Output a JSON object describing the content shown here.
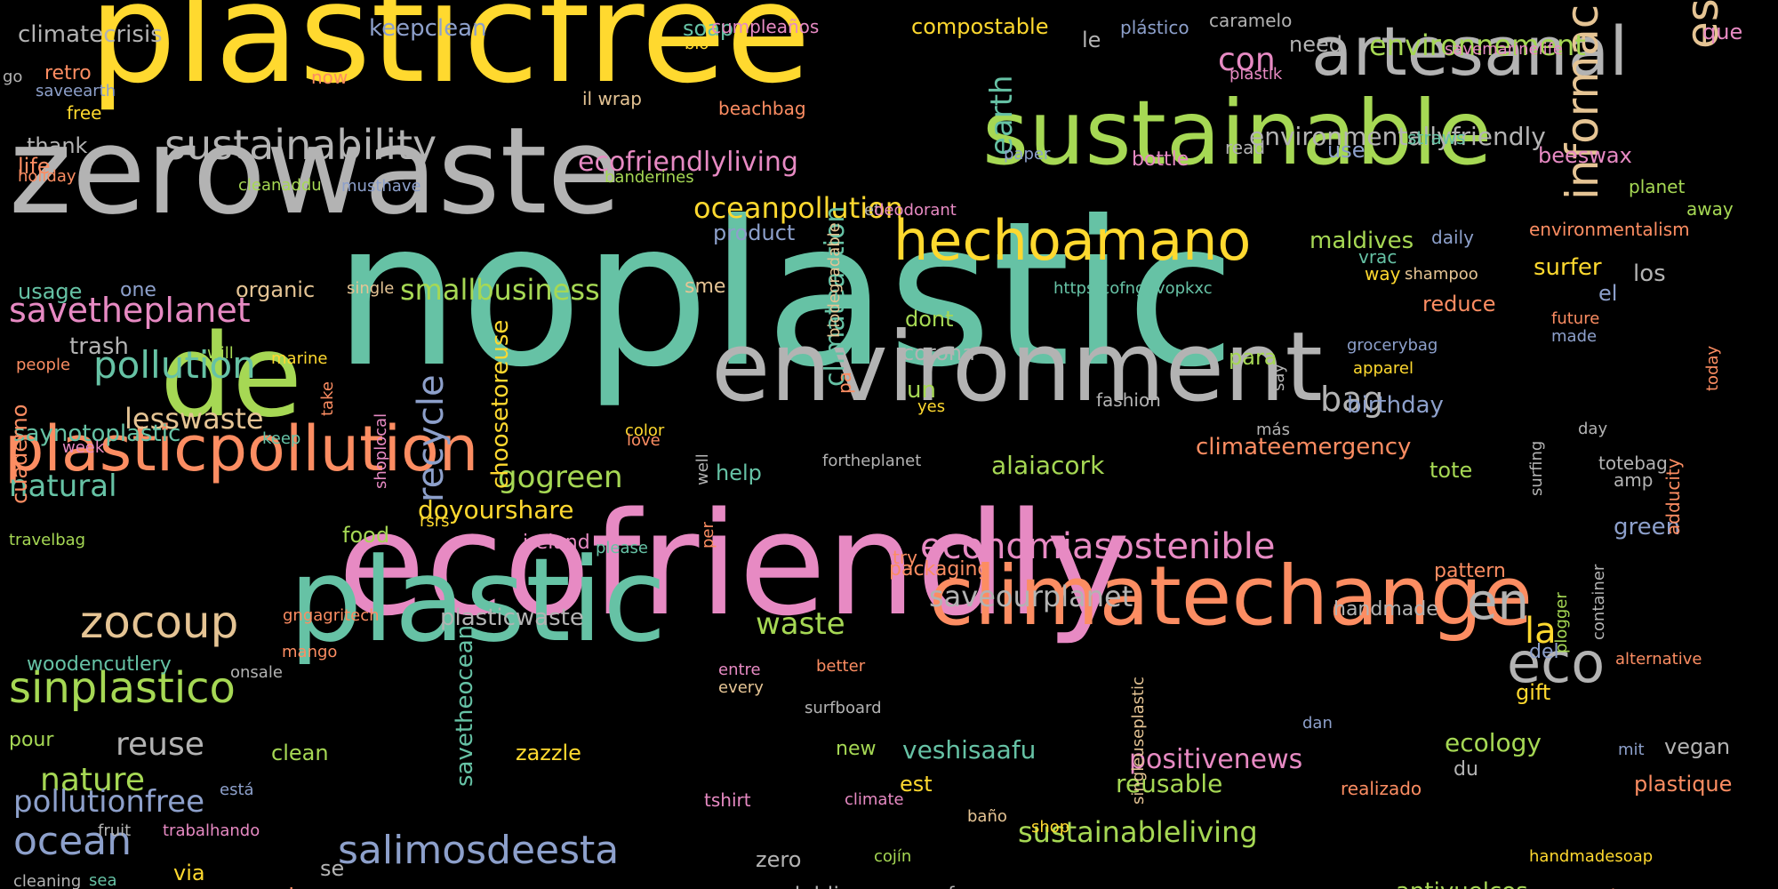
{
  "colors": {
    "background": "#000000",
    "teal": "#66c2a5",
    "orange": "#fc8d62",
    "blue": "#8da0cb",
    "pink": "#e78ac3",
    "green": "#a6d854",
    "yellow": "#ffd92f",
    "tan": "#e5c494",
    "gray": "#b3b3b3"
  },
  "words": [
    "noplastic",
    "ecofriendly",
    "plasticfree",
    "zerowaste",
    "plastic",
    "environment",
    "de",
    "sustainable",
    "climatechange",
    "plasticpollution",
    "artesanal",
    "hechoamano",
    "sustainability",
    "estonotienequeparar",
    "informacion",
    "eco",
    "en",
    "economiasostenible",
    "salimosdeesta",
    "sinplastico",
    "zocoup",
    "savetheplanet",
    "pollution",
    "ocean",
    "sustainableliving",
    "saveourplanet",
    "ecofriendlyliving",
    "environmentallyfriendly",
    "environnement",
    "positivenews",
    "recycle",
    "reuse",
    "nature",
    "pollutionfree",
    "lesswaste",
    "oceanpollution",
    "waste",
    "natural",
    "climateaction",
    "smallbusiness",
    "gogreen",
    "veshisaafu",
    "climateemergency",
    "con",
    "bag",
    "la",
    "earth",
    "doyourshare",
    "saynotoplastic",
    "alaiacork",
    "plasticwaste",
    "ecology",
    "antivuelcos",
    "reusable",
    "choosetoreuse",
    "savetheocean",
    "compostable",
    "keepclean",
    "climatecrisis",
    "soap",
    "cumpleaños",
    "plástico",
    "caramelo",
    "que",
    "need",
    "le",
    "savemarinelife",
    "plastik",
    "go",
    "retro",
    "saveearth",
    "free",
    "now",
    "bio",
    "il wrap",
    "beachbag",
    "thank",
    "read",
    "beeswax",
    "use",
    "straws",
    "life",
    "holiday",
    "cleanaddu",
    "musthave",
    "banderines",
    "paper",
    "bottle",
    "planet",
    "away",
    "environmentalism",
    "et",
    "deodorant",
    "product",
    "daily",
    "maldives",
    "surfer",
    "vrac",
    "los",
    "way",
    "shampoo",
    "httpstcofng8vopkxc",
    "organic",
    "single",
    "usage",
    "one",
    "reduce",
    "el",
    "biodegradable",
    "sme",
    "future",
    "made",
    "dont",
    "trash",
    "will",
    "marine",
    "people",
    "corona",
    "para",
    "grocerybag",
    "apparel",
    "today",
    "un",
    "say",
    "birthday",
    "fashion",
    "pa",
    "yes",
    "keep",
    "take",
    "week",
    "color",
    "más",
    "love",
    "day",
    "fortheplanet",
    "help",
    "tote",
    "totebag",
    "amp",
    "cuaderno",
    "shoplocal",
    "rsrs",
    "well",
    "ireland",
    "food",
    "surfing",
    "green",
    "travelbag",
    "please",
    "per",
    "try",
    "packaging",
    "pattern",
    "adducity",
    "handmade",
    "gngagritech",
    "mango",
    "del",
    "container",
    "woodencutlery",
    "onsale",
    "better",
    "entre",
    "every",
    "alternative",
    "plogger",
    "gift",
    "surfboard",
    "pour",
    "dan",
    "clean",
    "zazzle",
    "new",
    "mit",
    "vegan",
    "du",
    "plastique",
    "singleuseplastic",
    "est",
    "está",
    "tshirt",
    "realizado",
    "fruit",
    "trabalhando",
    "climate",
    "baño",
    "shop",
    "se",
    "via",
    "cojín",
    "zero",
    "handmadesoap",
    "cleaning",
    "sea",
    "water",
    "dublin",
    "surf",
    "newsletter"
  ]
}
